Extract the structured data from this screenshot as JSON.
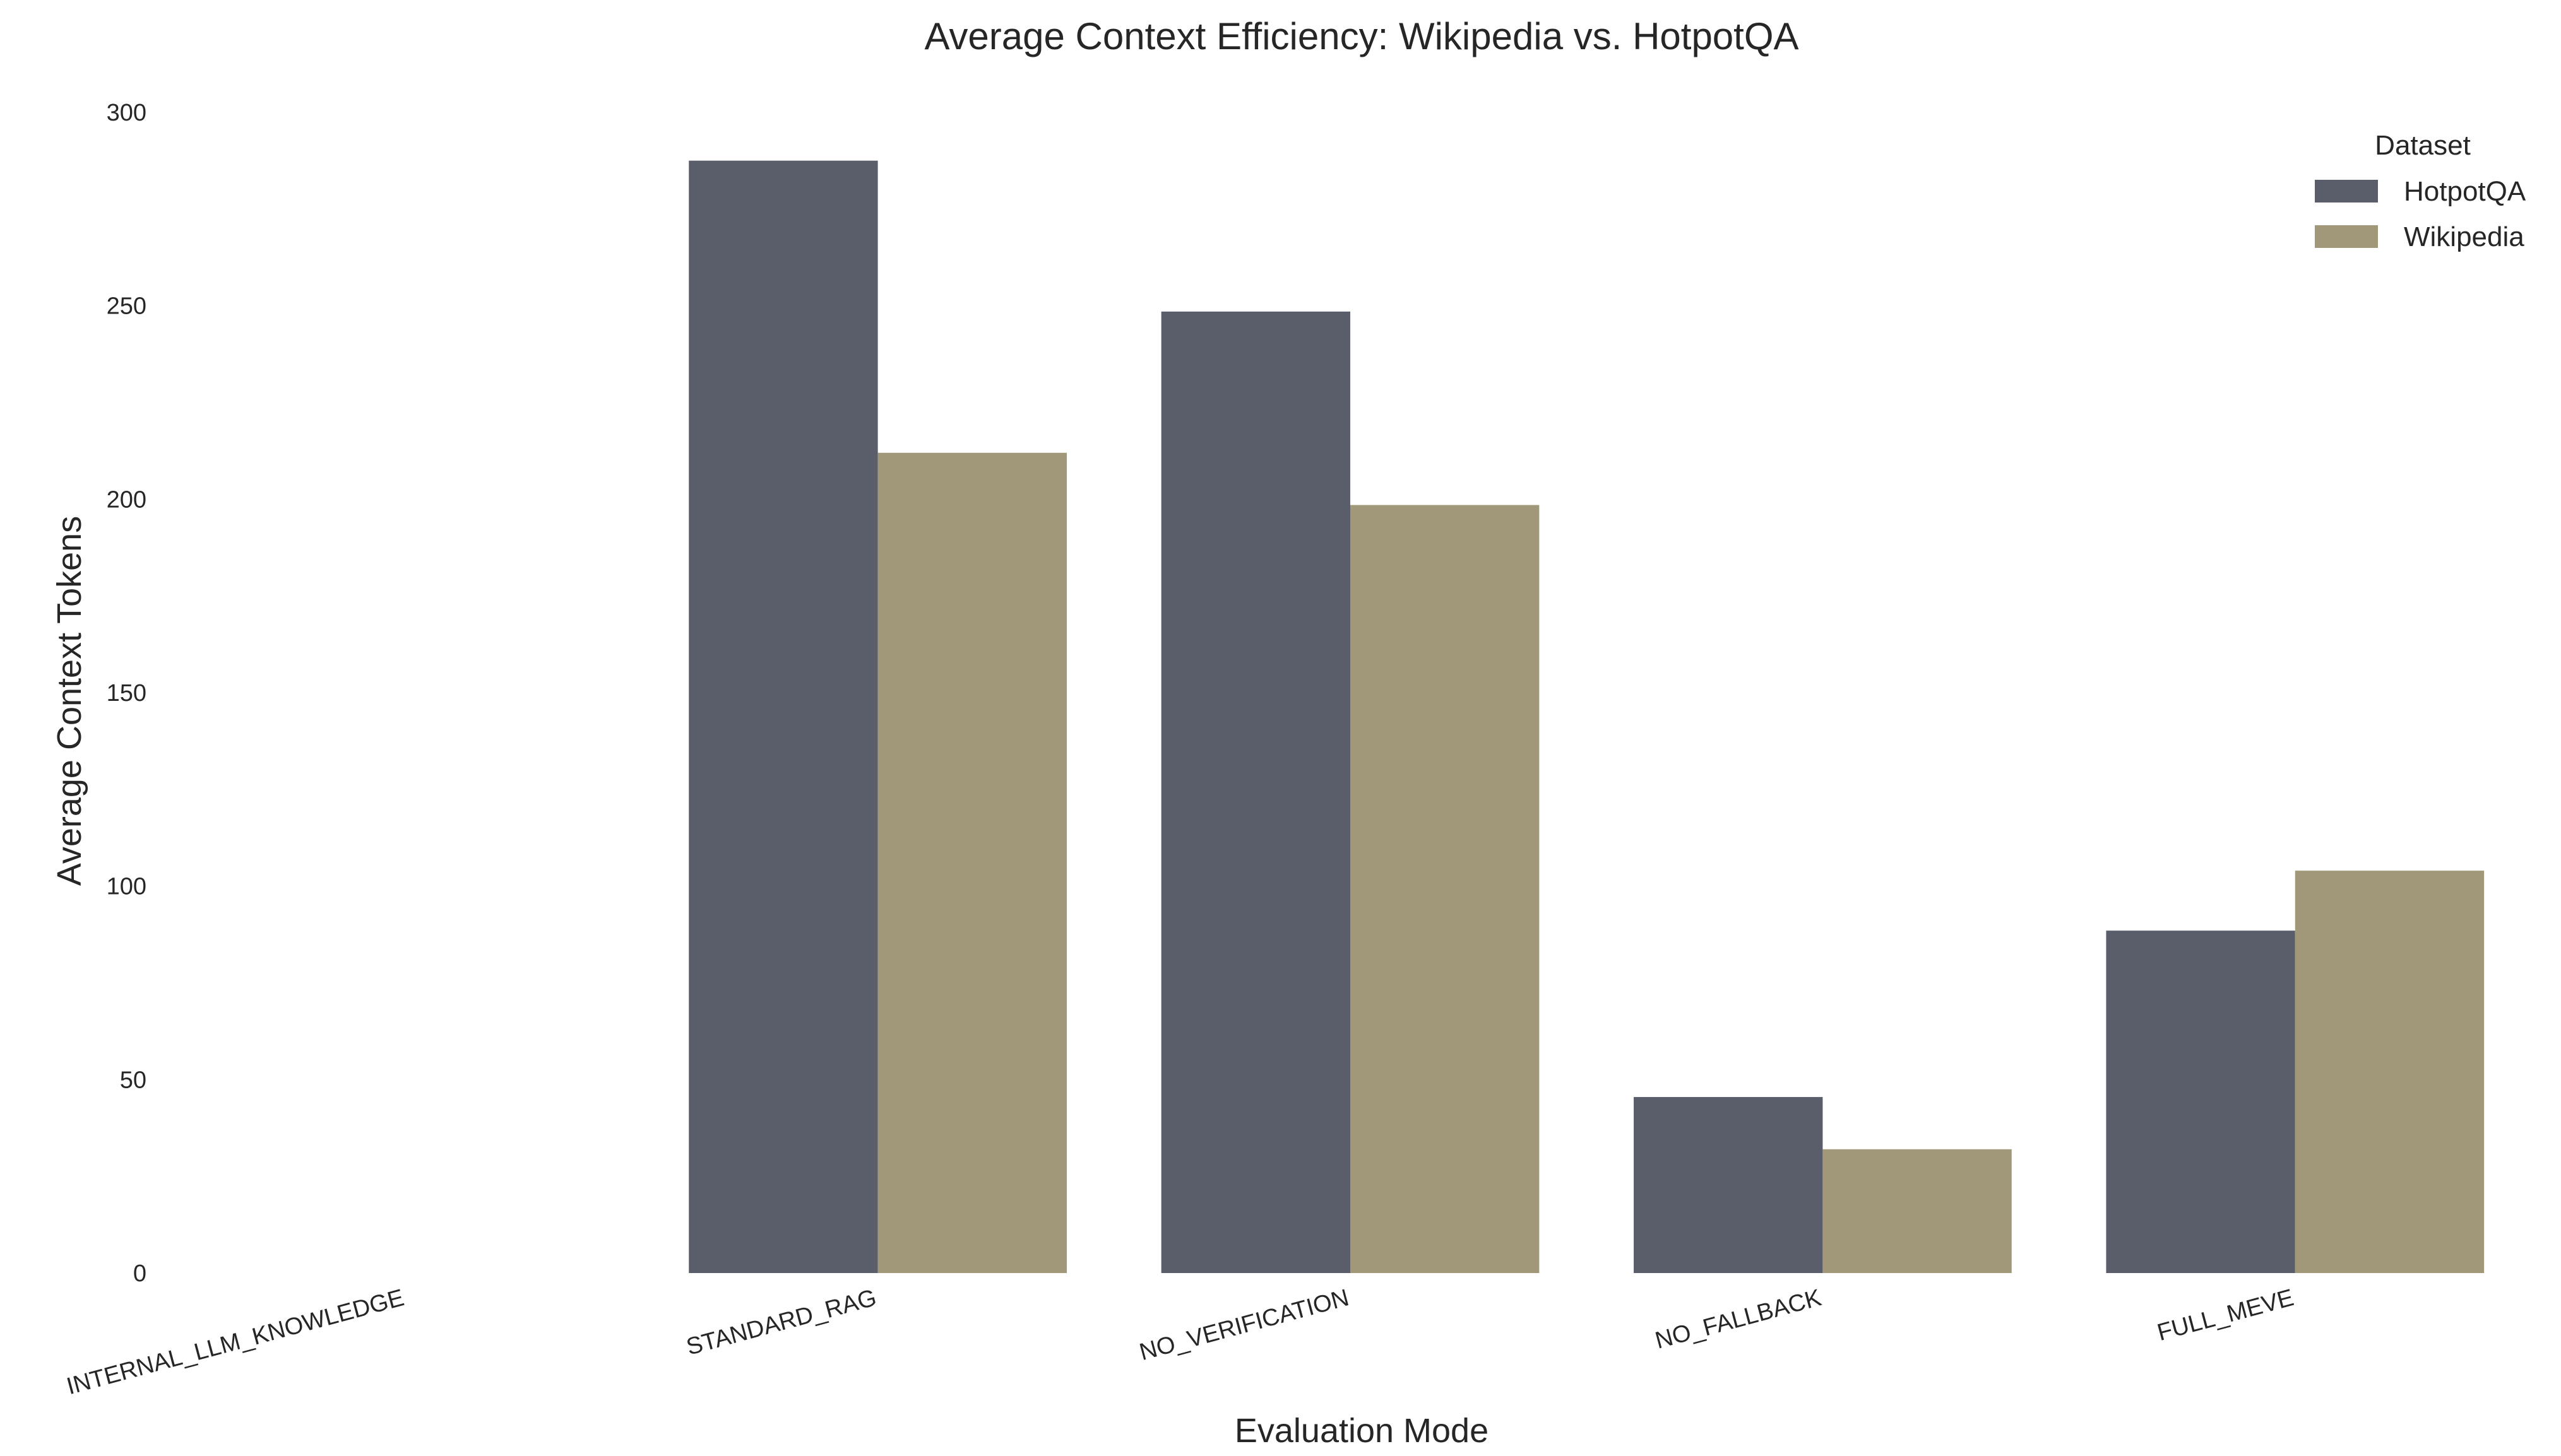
{
  "chart_data": {
    "type": "bar",
    "title": "Average Context Efficiency: Wikipedia vs. HotpotQA",
    "xlabel": "Evaluation Mode",
    "ylabel": "Average Context Tokens",
    "categories": [
      "INTERNAL_LLM_KNOWLEDGE",
      "STANDARD_RAG",
      "NO_VERIFICATION",
      "NO_FALLBACK",
      "FULL_MEVE"
    ],
    "series": [
      {
        "name": "HotpotQA",
        "color": "#5a5e6b",
        "values": [
          0,
          287.5,
          248.5,
          45.5,
          88.5
        ]
      },
      {
        "name": "Wikipedia",
        "color": "#a09879",
        "values": [
          0,
          212,
          198.5,
          32,
          104
        ]
      }
    ],
    "ylim": [
      0,
      300
    ],
    "yticks": [
      0,
      50,
      100,
      150,
      200,
      250,
      300
    ],
    "grid": false,
    "legend": {
      "title": "Dataset",
      "placement": "top-right"
    }
  }
}
